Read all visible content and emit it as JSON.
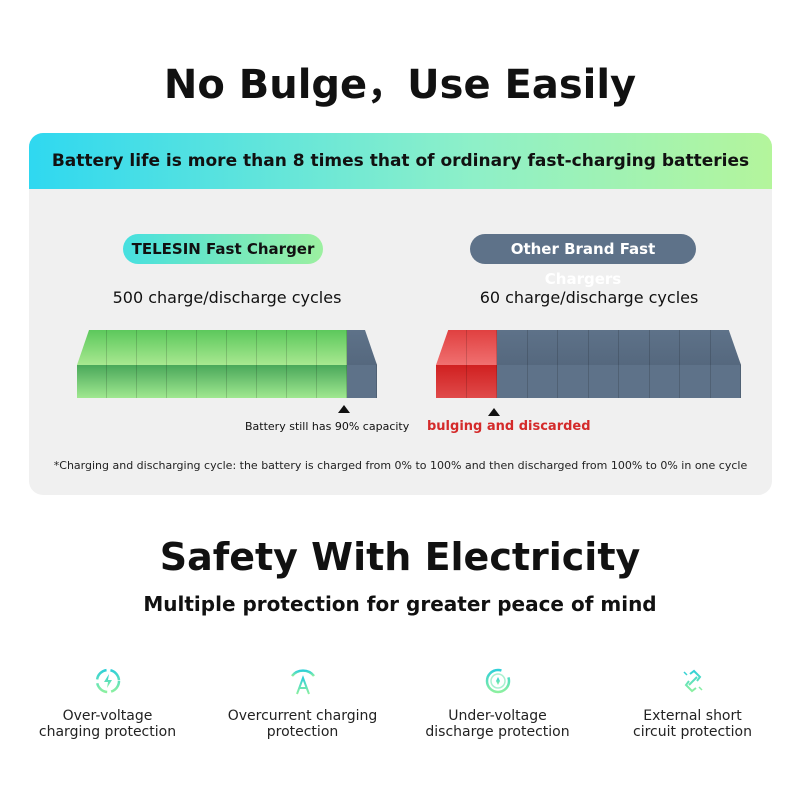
{
  "header": {
    "title": "No Bulge，Use Easily"
  },
  "panel": {
    "banner": "Battery life is more than 8 times that of ordinary fast-charging batteries",
    "left": {
      "badge": "TELESIN Fast Charger",
      "cycles": "500 charge/discharge cycles",
      "note": "Battery still has 90% capacity",
      "good_cells": 9,
      "total_cells": 10,
      "color": "#5cc85c"
    },
    "right": {
      "badge": "Other Brand Fast Chargers",
      "cycles": "60 charge/discharge cycles",
      "note": "bulging and discarded",
      "bad_cells": 2,
      "total_cells": 10,
      "color": "#d42a2a"
    },
    "footnote": "*Charging and discharging cycle: the battery is charged from 0% to 100% and then discharged from 100% to 0% in one cycle"
  },
  "safety": {
    "title": "Safety With Electricity",
    "subtitle": "Multiple protection for greater peace of mind",
    "features": [
      {
        "icon": "lightning-circle-icon",
        "line1": "Over-voltage",
        "line2": "charging protection"
      },
      {
        "icon": "ampere-icon",
        "line1": "Overcurrent charging",
        "line2": "protection"
      },
      {
        "icon": "gauge-circle-icon",
        "line1": "Under-voltage",
        "line2": "discharge protection"
      },
      {
        "icon": "broken-link-icon",
        "line1": "External short",
        "line2": "circuit protection"
      }
    ]
  },
  "colors": {
    "grey_cell": "#5e7289",
    "accent": "#3fd8c0"
  }
}
